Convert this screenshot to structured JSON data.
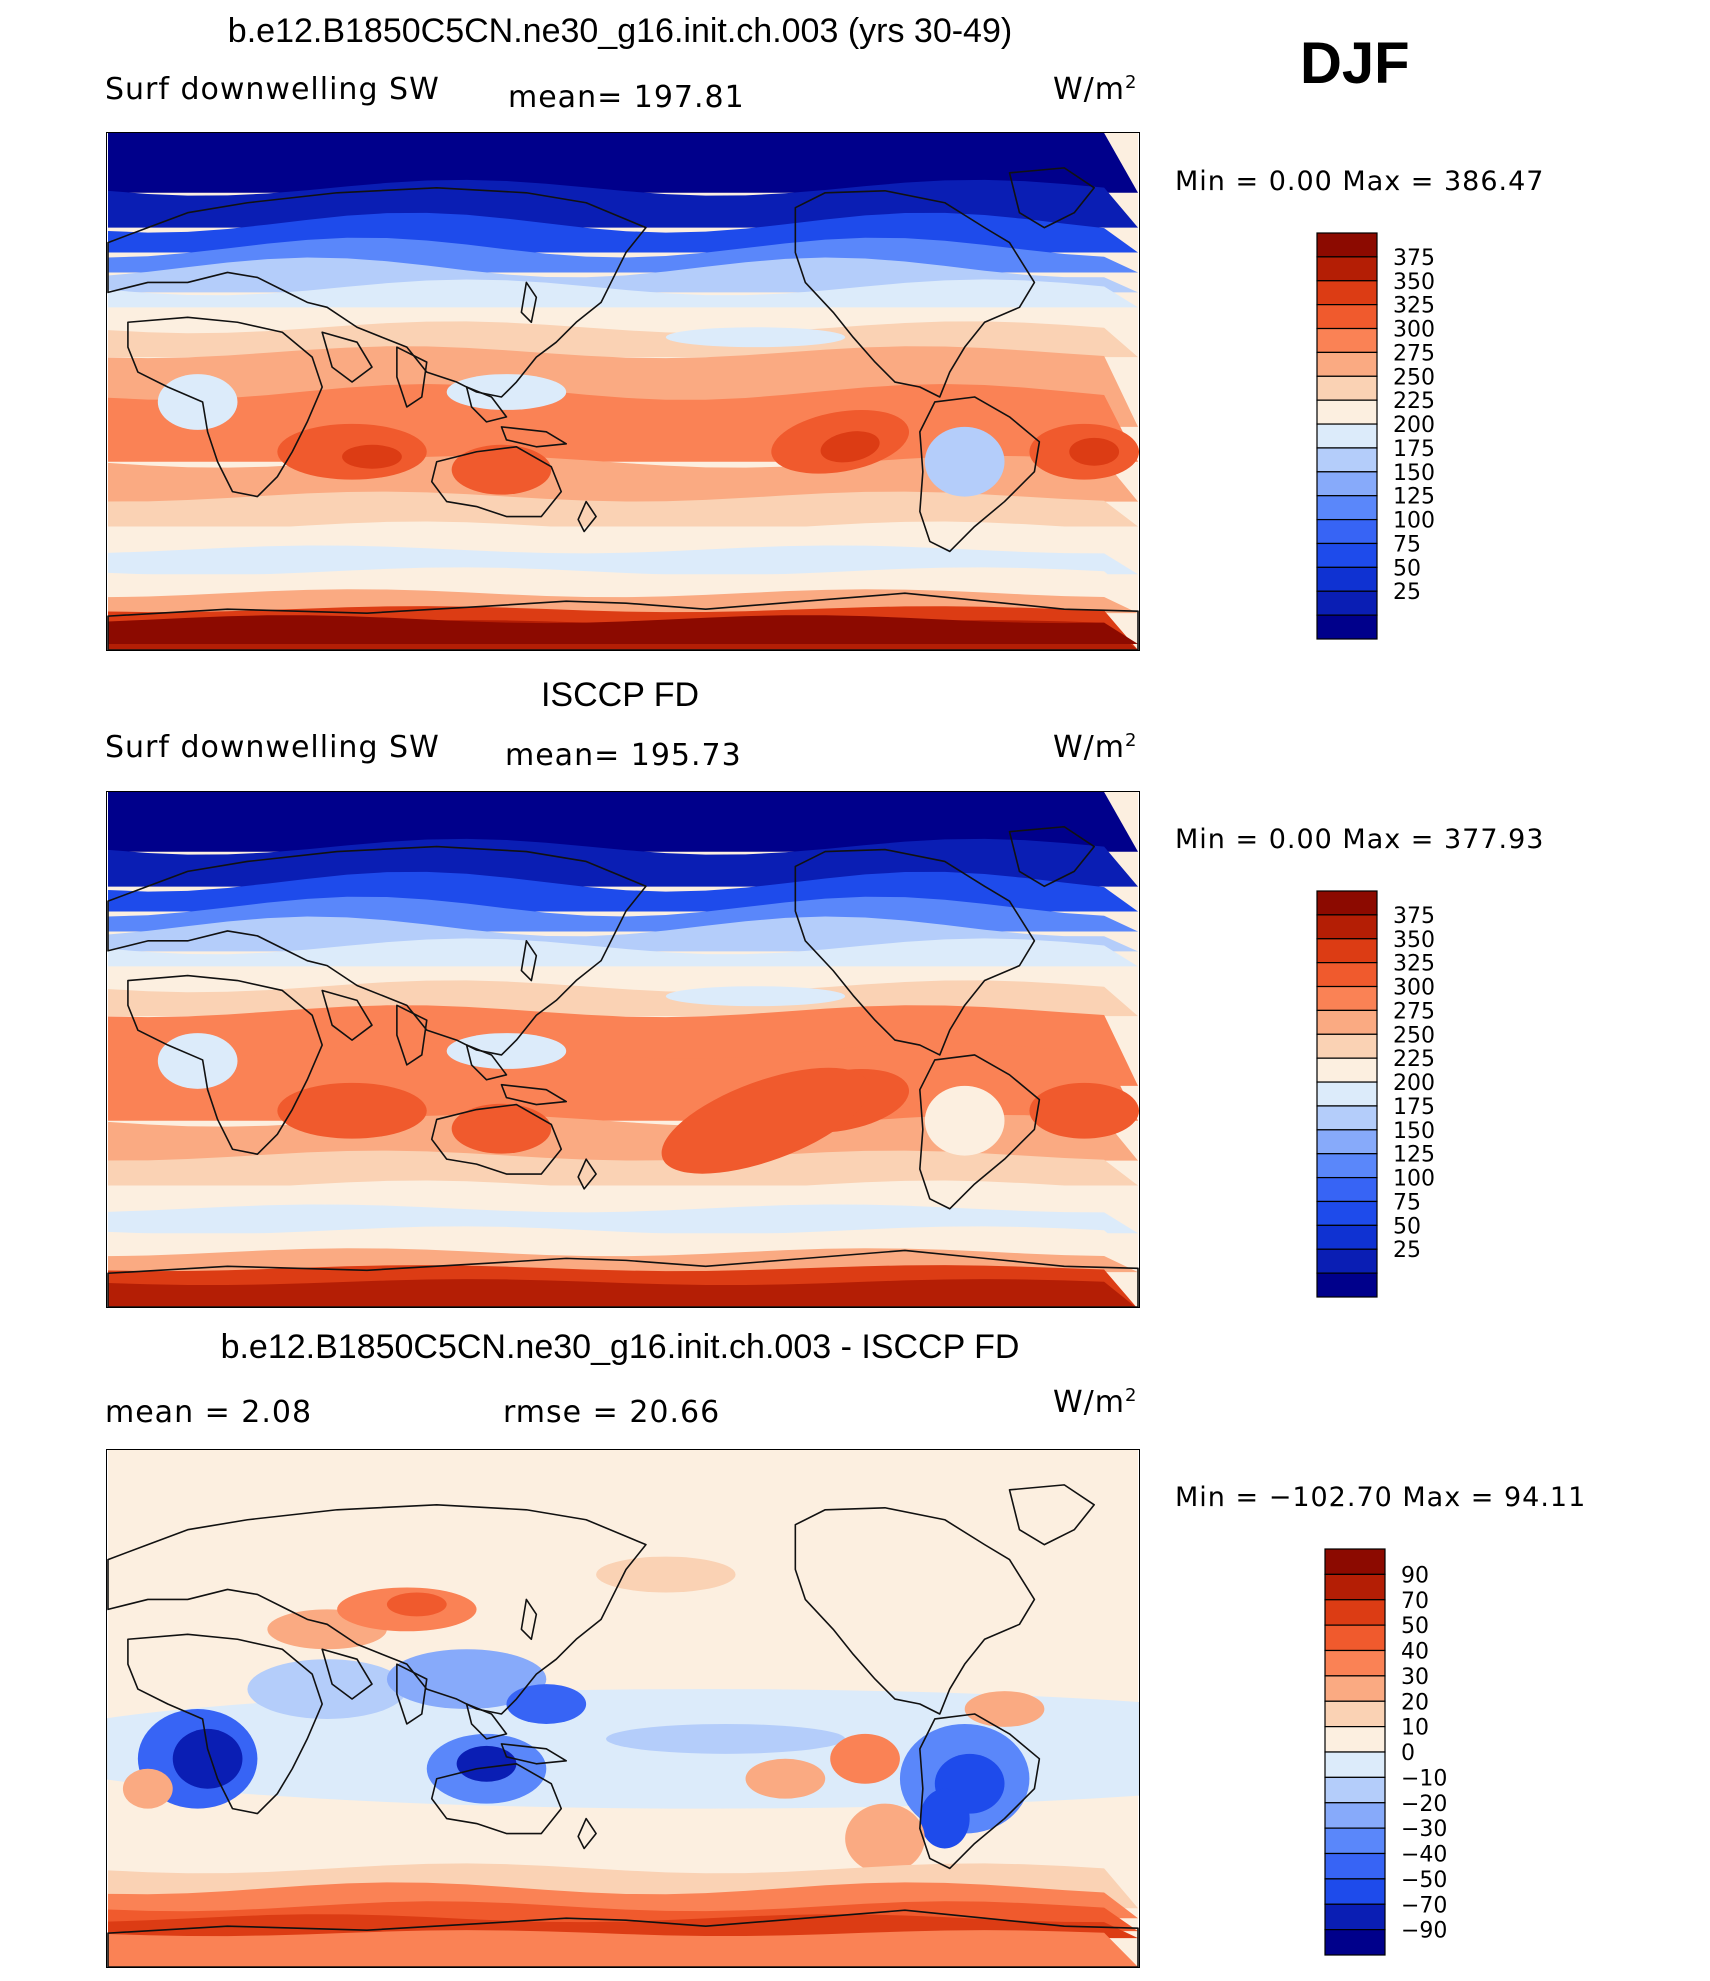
{
  "season": "DJF",
  "colors": {
    "sw": [
      "#00008b",
      "#0a1eb4",
      "#0f32d2",
      "#1e4beb",
      "#3764f5",
      "#5a87fa",
      "#87aafa",
      "#b4cdfa",
      "#dcebfa",
      "#fcefe0",
      "#fad2b4",
      "#faaa82",
      "#fa8255",
      "#f05a2d",
      "#dc3c14",
      "#b41e05",
      "#8c0a00"
    ],
    "diff": [
      "#00008b",
      "#0a1eb4",
      "#1e4beb",
      "#3764f5",
      "#5a87fa",
      "#87aafa",
      "#b4cdfa",
      "#dcebfa",
      "#fcefe0",
      "#fad2b4",
      "#faaa82",
      "#fa8255",
      "#f05a2d",
      "#dc3c14",
      "#b41e05",
      "#8c0a00"
    ]
  },
  "panels": [
    {
      "title": "b.e12.B1850C5CN.ne30_g16.init.ch.003 (yrs 30-49)",
      "left": "Surf  downwelling  SW",
      "mid": "mean=  197.81",
      "units": "W/m",
      "units_sup": "2",
      "stats": "Min  =      0.00  Max  =  386.47",
      "colorbar": [
        "375",
        "350",
        "325",
        "300",
        "275",
        "250",
        "225",
        "200",
        "175",
        "150",
        "125",
        "100",
        "75",
        "50",
        "25"
      ],
      "map": "model"
    },
    {
      "title": "ISCCP FD",
      "left": "Surf  downwelling  SW",
      "mid": "mean=  195.73",
      "units": "W/m",
      "units_sup": "2",
      "stats": "Min  =      0.00  Max  =  377.93",
      "colorbar": [
        "375",
        "350",
        "325",
        "300",
        "275",
        "250",
        "225",
        "200",
        "175",
        "150",
        "125",
        "100",
        "75",
        "50",
        "25"
      ],
      "map": "obs"
    },
    {
      "title": "b.e12.B1850C5CN.ne30_g16.init.ch.003 - ISCCP FD",
      "left": "mean  =      2.08",
      "mid": "rmse  =    20.66",
      "units": "W/m",
      "units_sup": "2",
      "stats": "Min  =  −102.70  Max  =     94.11",
      "colorbar": [
        "90",
        "70",
        "50",
        "40",
        "30",
        "20",
        "10",
        "0",
        "−10",
        "−20",
        "−30",
        "−40",
        "−50",
        "−70",
        "−90"
      ],
      "map": "diff"
    }
  ]
}
